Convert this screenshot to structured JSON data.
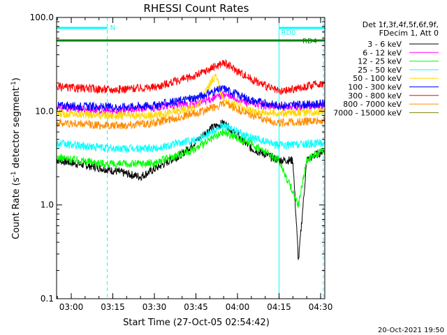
{
  "chart_data": {
    "type": "line",
    "title": "RHESSI Count Rates",
    "xlabel": "Start Time (27-Oct-05 02:54:42)",
    "ylabel_main": "Count Rate (s",
    "ylabel_sup1": "-1",
    "ylabel_mid": " detector segment",
    "ylabel_sup2": "-1",
    "ylabel_end": ")",
    "y_scale": "log",
    "ylim": [
      0.1,
      100.0
    ],
    "xlim": [
      "02:54:42",
      "04:31:30"
    ],
    "y_ticks": [
      {
        "value": 100.0,
        "label": "100.0"
      },
      {
        "value": 10.0,
        "label": "10.0"
      },
      {
        "value": 1.0,
        "label": "1.0"
      },
      {
        "value": 0.1,
        "label": "0.1"
      }
    ],
    "x_ticks": [
      "03:00",
      "03:15",
      "03:30",
      "03:45",
      "04:00",
      "04:15",
      "04:30"
    ],
    "legend_header": [
      "Det 1f,3f,4f,5f,6f,9f,",
      "FDecim 1, Att 0"
    ],
    "legend_placement": "right",
    "series": [
      {
        "name": "3 - 6 keV",
        "color": "#000000",
        "x": [
          "02:55",
          "03:10",
          "03:25",
          "03:40",
          "03:50",
          "03:55",
          "04:05",
          "04:15",
          "04:20",
          "04:22",
          "04:25",
          "04:31"
        ],
        "values": [
          3.0,
          2.5,
          2.0,
          3.5,
          6.5,
          7.5,
          4.0,
          3.0,
          3.0,
          0.25,
          3.0,
          3.8
        ]
      },
      {
        "name": "6 - 12 keV",
        "color": "#ff00ff",
        "x": [
          "02:55",
          "03:15",
          "03:30",
          "03:45",
          "03:55",
          "04:05",
          "04:15",
          "04:30"
        ],
        "values": [
          11.0,
          10.0,
          11.0,
          12.0,
          15.0,
          12.0,
          11.0,
          11.5
        ]
      },
      {
        "name": "12 - 25 keV",
        "color": "#00ff00",
        "x": [
          "02:55",
          "03:15",
          "03:30",
          "03:45",
          "03:55",
          "04:05",
          "04:15",
          "04:22",
          "04:25",
          "04:31"
        ],
        "values": [
          3.2,
          2.7,
          2.8,
          4.0,
          6.0,
          4.5,
          3.0,
          1.0,
          3.0,
          3.9
        ]
      },
      {
        "name": "25 - 50 keV",
        "color": "#00ffff",
        "x": [
          "02:55",
          "03:15",
          "03:30",
          "03:45",
          "03:55",
          "04:05",
          "04:15",
          "04:31"
        ],
        "values": [
          4.5,
          4.0,
          4.0,
          5.0,
          7.0,
          5.2,
          4.3,
          4.6
        ]
      },
      {
        "name": "50 - 100 keV",
        "color": "#ffd700",
        "x": [
          "02:55",
          "03:15",
          "03:30",
          "03:45",
          "03:52",
          "03:55",
          "04:05",
          "04:15",
          "04:31"
        ],
        "values": [
          9.5,
          9.0,
          9.0,
          11.0,
          24.0,
          13.0,
          10.0,
          9.5,
          10.0
        ]
      },
      {
        "name": "100 - 300 keV",
        "color": "#0000ff",
        "x": [
          "02:55",
          "03:15",
          "03:30",
          "03:45",
          "03:55",
          "04:05",
          "04:15",
          "04:31"
        ],
        "values": [
          11.5,
          11.0,
          11.5,
          14.0,
          17.5,
          13.0,
          11.5,
          12.0
        ]
      },
      {
        "name": "300 - 800 keV",
        "color": "#ff0000",
        "x": [
          "02:55",
          "03:15",
          "03:30",
          "03:45",
          "03:55",
          "04:05",
          "04:15",
          "04:31"
        ],
        "values": [
          18.0,
          17.0,
          18.0,
          24.0,
          33.0,
          22.0,
          16.0,
          20.0
        ]
      },
      {
        "name": "800 - 7000 keV",
        "color": "#ff8c00",
        "x": [
          "02:55",
          "03:15",
          "03:30",
          "03:45",
          "03:55",
          "04:05",
          "04:15",
          "04:31"
        ],
        "values": [
          7.5,
          7.0,
          7.5,
          9.5,
          12.0,
          9.0,
          7.5,
          8.0
        ]
      },
      {
        "name": "7000 - 15000 keV",
        "color": "#808000",
        "x": [],
        "values": []
      }
    ],
    "flags": [
      {
        "label": "N",
        "color": "#00ffff",
        "x_range": [
          "02:54:42",
          "03:13:00"
        ],
        "level": "top"
      },
      {
        "label": "RD0",
        "color": "#00ffff",
        "x_range": [
          "04:15:00",
          "04:31:30"
        ],
        "level": "top"
      },
      {
        "label": "RD4",
        "color": "#008000",
        "x_range": [
          "02:54:42",
          "04:31:30"
        ],
        "level": "second"
      }
    ],
    "vertical_markers": [
      {
        "time": "02:54:42",
        "color": "#00ffff",
        "style": "dashed"
      },
      {
        "time": "03:13:00",
        "color": "#00ffff",
        "style": "dashed"
      },
      {
        "time": "04:15:00",
        "color": "#00ffff",
        "style": "solid"
      },
      {
        "time": "04:31:00",
        "color": "#00ffff",
        "style": "dashed"
      }
    ],
    "grid": false
  },
  "footer_timestamp": "20-Oct-2021 19:50"
}
